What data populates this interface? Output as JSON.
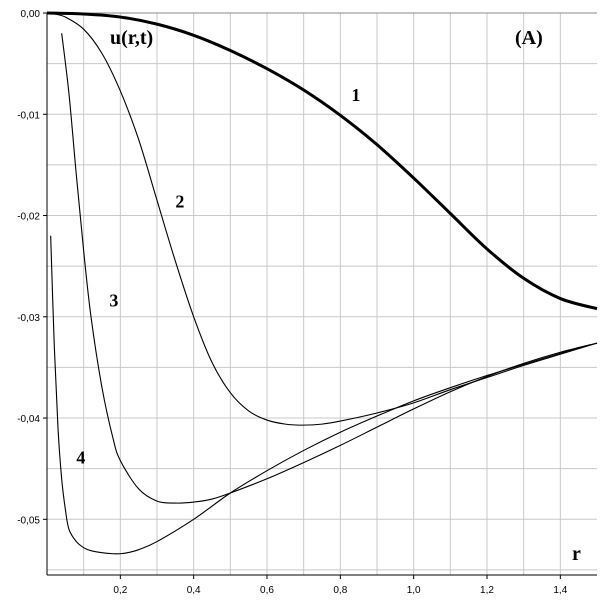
{
  "chart_data": {
    "type": "line",
    "title": "",
    "panel_label": "(A)",
    "ylabel": "u(r,t)",
    "xlabel": "r",
    "xlim": [
      0,
      1.5
    ],
    "ylim": [
      -0.0555,
      0.0
    ],
    "grid": true,
    "x_ticks": [
      0.2,
      0.4,
      0.6,
      0.8,
      1.0,
      1.2,
      1.4
    ],
    "x_tick_labels": [
      "0,2",
      "0,4",
      "0,6",
      "0,8",
      "1,0",
      "1,2",
      "1,4"
    ],
    "y_ticks": [
      0.0,
      -0.01,
      -0.02,
      -0.03,
      -0.04,
      -0.05
    ],
    "y_tick_labels": [
      "0,00",
      "-0,01",
      "-0,02",
      "-0,03",
      "-0,04",
      "-0,05"
    ],
    "series": [
      {
        "name": "1",
        "x": [
          0,
          0.1,
          0.2,
          0.3,
          0.4,
          0.5,
          0.6,
          0.7,
          0.8,
          0.9,
          1.0,
          1.1,
          1.2,
          1.3,
          1.4,
          1.5
        ],
        "y": [
          0,
          -0.0001,
          -0.0004,
          -0.0011,
          -0.0022,
          -0.0037,
          -0.0055,
          -0.0076,
          -0.0101,
          -0.013,
          -0.0163,
          -0.0198,
          -0.0233,
          -0.0262,
          -0.0282,
          -0.0292
        ]
      },
      {
        "name": "2",
        "x": [
          0.02,
          0.05,
          0.1,
          0.15,
          0.2,
          0.25,
          0.3,
          0.35,
          0.4,
          0.45,
          0.5,
          0.55,
          0.6,
          0.65,
          0.7,
          0.75,
          0.8,
          0.9,
          1.0,
          1.1,
          1.2,
          1.3,
          1.4,
          1.5
        ],
        "y": [
          -0.0001,
          -0.0004,
          -0.0016,
          -0.004,
          -0.0077,
          -0.0125,
          -0.0185,
          -0.0245,
          -0.03,
          -0.0345,
          -0.0375,
          -0.0393,
          -0.0402,
          -0.0406,
          -0.0407,
          -0.0406,
          -0.0403,
          -0.0395,
          -0.0385,
          -0.0372,
          -0.036,
          -0.0348,
          -0.0337,
          -0.0326
        ]
      },
      {
        "name": "3",
        "x": [
          0.04,
          0.06,
          0.08,
          0.1,
          0.12,
          0.15,
          0.18,
          0.2,
          0.25,
          0.3,
          0.35,
          0.4,
          0.45,
          0.5,
          0.6,
          0.7,
          0.8,
          0.9,
          1.0,
          1.1,
          1.2,
          1.3,
          1.4,
          1.5
        ],
        "y": [
          -0.002,
          -0.008,
          -0.016,
          -0.0235,
          -0.03,
          -0.037,
          -0.042,
          -0.0442,
          -0.047,
          -0.0482,
          -0.0484,
          -0.0483,
          -0.048,
          -0.0474,
          -0.046,
          -0.0444,
          -0.0427,
          -0.0409,
          -0.0391,
          -0.0374,
          -0.0359,
          -0.0346,
          -0.0335,
          -0.0326
        ]
      },
      {
        "name": "4",
        "x": [
          0.01,
          0.02,
          0.03,
          0.04,
          0.05,
          0.06,
          0.08,
          0.1,
          0.12,
          0.15,
          0.18,
          0.2,
          0.22,
          0.25,
          0.3,
          0.4,
          0.5,
          0.6,
          0.7,
          0.8,
          0.9,
          1.0,
          1.1,
          1.2,
          1.3,
          1.4,
          1.5
        ],
        "y": [
          -0.022,
          -0.033,
          -0.041,
          -0.046,
          -0.049,
          -0.051,
          -0.0522,
          -0.0528,
          -0.0531,
          -0.0533,
          -0.0534,
          -0.0534,
          -0.0533,
          -0.053,
          -0.0522,
          -0.05,
          -0.0474,
          -0.0452,
          -0.0432,
          -0.0414,
          -0.0398,
          -0.0383,
          -0.037,
          -0.0358,
          -0.0347,
          -0.0336,
          -0.0326
        ]
      }
    ],
    "curve_labels": [
      {
        "text": "1",
        "x": 0.83,
        "y": -0.0087
      },
      {
        "text": "2",
        "x": 0.35,
        "y": -0.0192
      },
      {
        "text": "3",
        "x": 0.17,
        "y": -0.029
      },
      {
        "text": "4",
        "x": 0.08,
        "y": -0.0445
      }
    ]
  }
}
